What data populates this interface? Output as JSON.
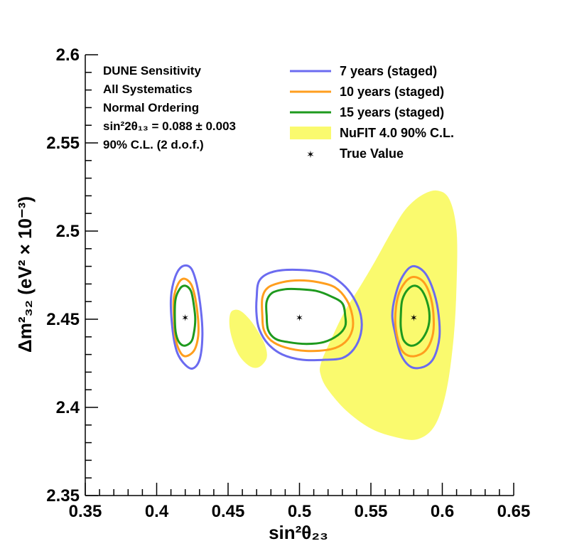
{
  "chart_data": {
    "type": "contour",
    "xlabel": "sin²θ₂₃",
    "ylabel": "Δm²₃₂ (eV² × 10⁻³)",
    "xlim": [
      0.35,
      0.65
    ],
    "ylim": [
      2.35,
      2.6
    ],
    "x_ticks": [
      0.35,
      0.4,
      0.45,
      0.5,
      0.55,
      0.6,
      0.65
    ],
    "x_tick_labels": [
      "0.35",
      "0.4",
      "0.45",
      "0.5",
      "0.55",
      "0.6",
      "0.65"
    ],
    "y_ticks": [
      2.35,
      2.4,
      2.45,
      2.5,
      2.55,
      2.6
    ],
    "y_tick_labels": [
      "2.35",
      "2.4",
      "2.45",
      "2.5",
      "2.55",
      "2.6"
    ],
    "info_lines": [
      "DUNE Sensitivity",
      "All Systematics",
      "Normal Ordering",
      "sin²2θ₁₃ = 0.088 ± 0.003",
      "90% C.L. (2 d.o.f.)"
    ],
    "legend": [
      {
        "label": "7 years (staged)",
        "kind": "line",
        "color": "#6b6bf0"
      },
      {
        "label": "10 years (staged)",
        "kind": "line",
        "color": "#ff9e1e"
      },
      {
        "label": "15 years (staged)",
        "kind": "line",
        "color": "#1e9a1e"
      },
      {
        "label": "NuFIT 4.0 90% C.L.",
        "kind": "fill",
        "color": "#fafa6e"
      },
      {
        "label": "True Value",
        "kind": "marker",
        "color": "#000000"
      }
    ],
    "true_values": [
      {
        "x": 0.42,
        "y": 2.451
      },
      {
        "x": 0.5,
        "y": 2.451
      },
      {
        "x": 0.58,
        "y": 2.451
      }
    ],
    "nufit_regions": [
      [
        [
          0.452,
          2.454
        ],
        [
          0.458,
          2.455
        ],
        [
          0.465,
          2.45
        ],
        [
          0.471,
          2.443
        ],
        [
          0.476,
          2.435
        ],
        [
          0.477,
          2.428
        ],
        [
          0.472,
          2.423
        ],
        [
          0.466,
          2.423
        ],
        [
          0.459,
          2.428
        ],
        [
          0.454,
          2.436
        ],
        [
          0.451,
          2.446
        ]
      ],
      [
        [
          0.515,
          2.425
        ],
        [
          0.523,
          2.44
        ],
        [
          0.532,
          2.455
        ],
        [
          0.542,
          2.468
        ],
        [
          0.553,
          2.483
        ],
        [
          0.564,
          2.499
        ],
        [
          0.574,
          2.512
        ],
        [
          0.585,
          2.52
        ],
        [
          0.596,
          2.523
        ],
        [
          0.605,
          2.518
        ],
        [
          0.61,
          2.5
        ],
        [
          0.61,
          2.47
        ],
        [
          0.608,
          2.44
        ],
        [
          0.603,
          2.41
        ],
        [
          0.595,
          2.39
        ],
        [
          0.583,
          2.382
        ],
        [
          0.568,
          2.383
        ],
        [
          0.55,
          2.388
        ],
        [
          0.533,
          2.398
        ],
        [
          0.52,
          2.41
        ],
        [
          0.515,
          2.418
        ]
      ]
    ],
    "series": [
      {
        "name": "7 years (staged)",
        "color": "#6b6bf0",
        "contours": [
          [
            [
              0.41,
              2.462
            ],
            [
              0.413,
              2.474
            ],
            [
              0.418,
              2.48
            ],
            [
              0.424,
              2.479
            ],
            [
              0.428,
              2.47
            ],
            [
              0.431,
              2.455
            ],
            [
              0.432,
              2.44
            ],
            [
              0.43,
              2.427
            ],
            [
              0.425,
              2.422
            ],
            [
              0.419,
              2.425
            ],
            [
              0.414,
              2.432
            ],
            [
              0.411,
              2.445
            ]
          ],
          [
            [
              0.47,
              2.462
            ],
            [
              0.472,
              2.472
            ],
            [
              0.482,
              2.477
            ],
            [
              0.5,
              2.478
            ],
            [
              0.518,
              2.476
            ],
            [
              0.53,
              2.47
            ],
            [
              0.538,
              2.462
            ],
            [
              0.543,
              2.452
            ],
            [
              0.543,
              2.442
            ],
            [
              0.538,
              2.433
            ],
            [
              0.53,
              2.428
            ],
            [
              0.518,
              2.427
            ],
            [
              0.502,
              2.427
            ],
            [
              0.488,
              2.43
            ],
            [
              0.478,
              2.436
            ],
            [
              0.472,
              2.444
            ],
            [
              0.47,
              2.452
            ]
          ],
          [
            [
              0.567,
              2.463
            ],
            [
              0.572,
              2.474
            ],
            [
              0.579,
              2.48
            ],
            [
              0.587,
              2.477
            ],
            [
              0.593,
              2.468
            ],
            [
              0.597,
              2.455
            ],
            [
              0.598,
              2.44
            ],
            [
              0.594,
              2.428
            ],
            [
              0.587,
              2.423
            ],
            [
              0.578,
              2.423
            ],
            [
              0.571,
              2.43
            ],
            [
              0.567,
              2.442
            ],
            [
              0.565,
              2.452
            ]
          ]
        ]
      },
      {
        "name": "10 years (staged)",
        "color": "#ff9e1e",
        "contours": [
          [
            [
              0.412,
              2.462
            ],
            [
              0.415,
              2.47
            ],
            [
              0.419,
              2.473
            ],
            [
              0.424,
              2.47
            ],
            [
              0.427,
              2.462
            ],
            [
              0.429,
              2.45
            ],
            [
              0.429,
              2.44
            ],
            [
              0.426,
              2.432
            ],
            [
              0.42,
              2.429
            ],
            [
              0.416,
              2.432
            ],
            [
              0.413,
              2.44
            ],
            [
              0.412,
              2.452
            ]
          ],
          [
            [
              0.474,
              2.462
            ],
            [
              0.478,
              2.468
            ],
            [
              0.488,
              2.471
            ],
            [
              0.5,
              2.472
            ],
            [
              0.513,
              2.471
            ],
            [
              0.525,
              2.468
            ],
            [
              0.533,
              2.461
            ],
            [
              0.537,
              2.452
            ],
            [
              0.537,
              2.444
            ],
            [
              0.532,
              2.437
            ],
            [
              0.522,
              2.433
            ],
            [
              0.505,
              2.432
            ],
            [
              0.49,
              2.434
            ],
            [
              0.48,
              2.438
            ],
            [
              0.475,
              2.444
            ],
            [
              0.474,
              2.452
            ]
          ],
          [
            [
              0.569,
              2.463
            ],
            [
              0.574,
              2.471
            ],
            [
              0.58,
              2.474
            ],
            [
              0.587,
              2.471
            ],
            [
              0.592,
              2.462
            ],
            [
              0.594,
              2.45
            ],
            [
              0.593,
              2.44
            ],
            [
              0.588,
              2.432
            ],
            [
              0.58,
              2.429
            ],
            [
              0.573,
              2.431
            ],
            [
              0.569,
              2.438
            ],
            [
              0.567,
              2.45
            ]
          ]
        ]
      },
      {
        "name": "15 years (staged)",
        "color": "#1e9a1e",
        "contours": [
          [
            [
              0.413,
              2.46
            ],
            [
              0.416,
              2.467
            ],
            [
              0.42,
              2.469
            ],
            [
              0.424,
              2.466
            ],
            [
              0.426,
              2.458
            ],
            [
              0.427,
              2.45
            ],
            [
              0.426,
              2.442
            ],
            [
              0.424,
              2.437
            ],
            [
              0.419,
              2.435
            ],
            [
              0.415,
              2.438
            ],
            [
              0.413,
              2.445
            ]
          ],
          [
            [
              0.477,
              2.46
            ],
            [
              0.481,
              2.465
            ],
            [
              0.49,
              2.467
            ],
            [
              0.5,
              2.467
            ],
            [
              0.512,
              2.466
            ],
            [
              0.522,
              2.463
            ],
            [
              0.53,
              2.459
            ],
            [
              0.532,
              2.452
            ],
            [
              0.532,
              2.446
            ],
            [
              0.527,
              2.441
            ],
            [
              0.517,
              2.437
            ],
            [
              0.505,
              2.436
            ],
            [
              0.492,
              2.437
            ],
            [
              0.483,
              2.439
            ],
            [
              0.478,
              2.444
            ],
            [
              0.477,
              2.452
            ]
          ],
          [
            [
              0.572,
              2.461
            ],
            [
              0.576,
              2.467
            ],
            [
              0.581,
              2.469
            ],
            [
              0.586,
              2.466
            ],
            [
              0.59,
              2.458
            ],
            [
              0.591,
              2.45
            ],
            [
              0.589,
              2.443
            ],
            [
              0.584,
              2.437
            ],
            [
              0.578,
              2.435
            ],
            [
              0.573,
              2.438
            ],
            [
              0.571,
              2.445
            ],
            [
              0.571,
              2.453
            ]
          ]
        ]
      }
    ]
  }
}
